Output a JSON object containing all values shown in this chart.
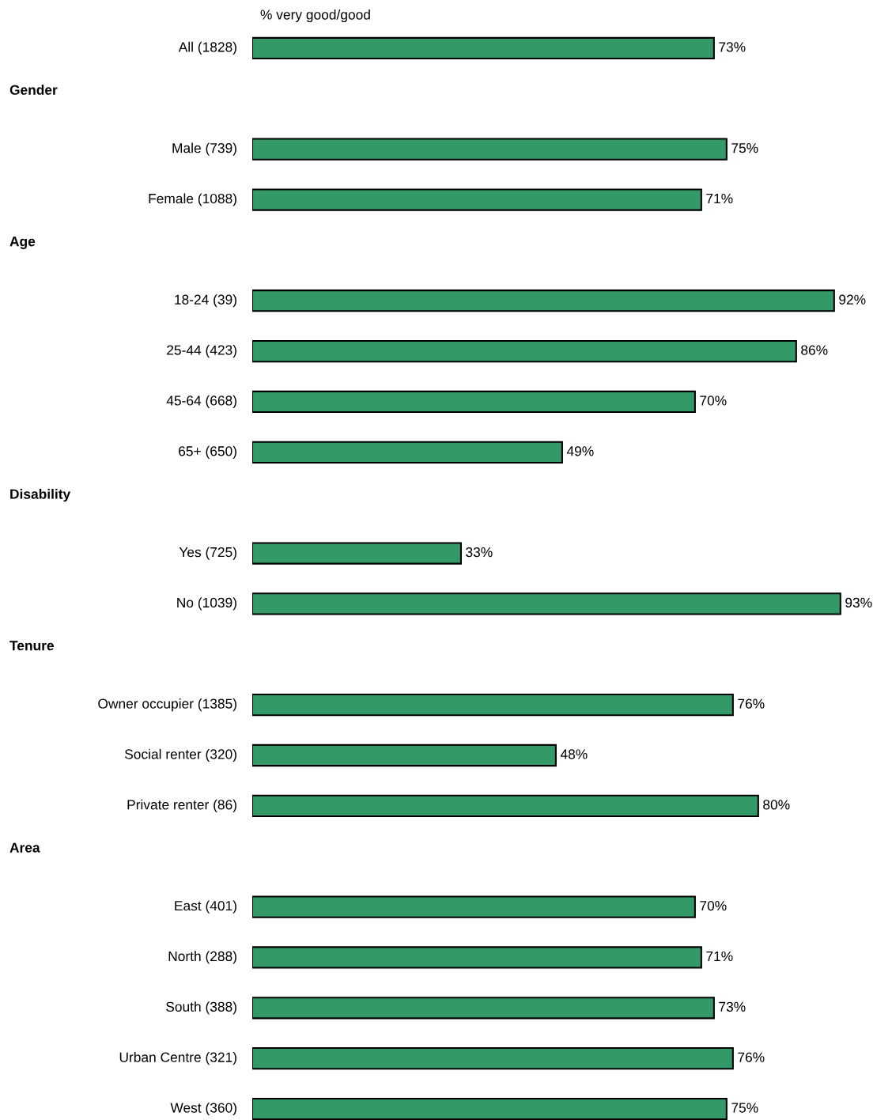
{
  "chart_data": {
    "type": "bar",
    "orientation": "horizontal",
    "xlabel": "% very good/good",
    "data_labels": true,
    "color": "#339966",
    "categories": [
      "All (1828)",
      null,
      "Male (739)",
      "Female (1088)",
      null,
      "18-24 (39)",
      "25-44 (423)",
      "45-64 (668)",
      "65+ (650)",
      null,
      "Yes (725)",
      "No (1039)",
      null,
      "Owner occupier (1385)",
      "Social renter (320)",
      "Private renter (86)",
      null,
      "East (401)",
      "North (288)",
      "South (388)",
      "Urban Centre (321)",
      "West (360)"
    ],
    "values": [
      73,
      null,
      75,
      71,
      null,
      92,
      86,
      70,
      49,
      null,
      33,
      93,
      null,
      76,
      48,
      80,
      null,
      70,
      71,
      73,
      76,
      75
    ],
    "value_labels": [
      "73%",
      null,
      "75%",
      "71%",
      null,
      "92%",
      "86%",
      "70%",
      "49%",
      null,
      "33%",
      "93%",
      null,
      "76%",
      "48%",
      "80%",
      null,
      "70%",
      "71%",
      "73%",
      "76%",
      "75%"
    ],
    "annotations": [
      "Gender",
      "Age",
      "Disability",
      "Tenure",
      "Area"
    ]
  }
}
